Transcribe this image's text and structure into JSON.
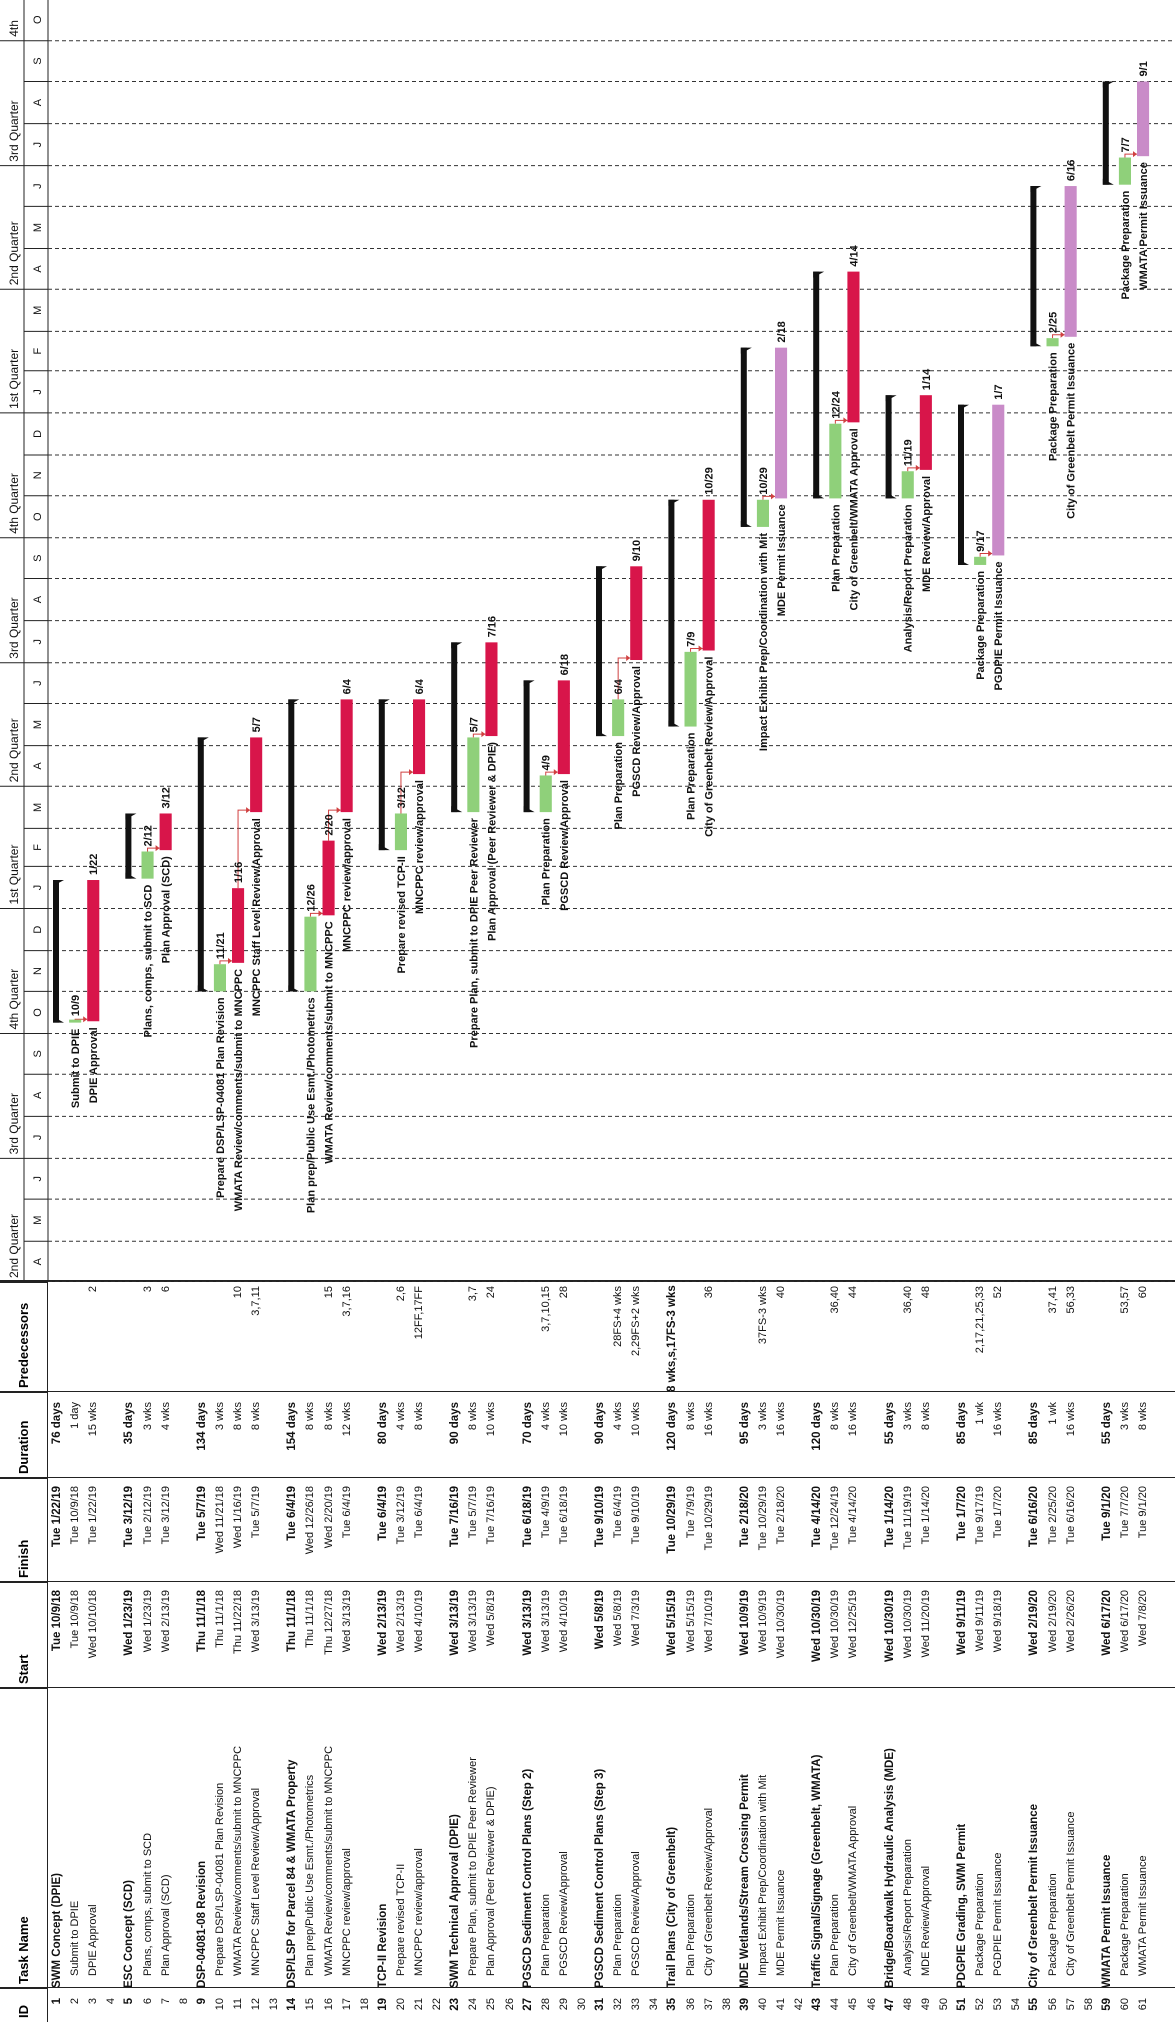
{
  "headers": {
    "id": "ID",
    "task": "Task Name",
    "start": "Start",
    "finish": "Finish",
    "duration": "Duration",
    "pred": "Predecessors"
  },
  "timescale": {
    "quarters": [
      "2nd Quarter",
      "3rd Quarter",
      "4th Quarter",
      "1st Quarter",
      "2nd Quarter",
      "3rd Quarter",
      "4th Quarter",
      "1st Quarter",
      "2nd Quarter",
      "3rd Quarter",
      "4th"
    ],
    "months": [
      "A",
      "M",
      "J",
      "J",
      "A",
      "S",
      "O",
      "N",
      "D",
      "J",
      "F",
      "M",
      "A",
      "M",
      "J",
      "J",
      "A",
      "S",
      "O",
      "N",
      "D",
      "J",
      "F",
      "M",
      "A",
      "M",
      "J",
      "J",
      "A",
      "S",
      "O"
    ]
  },
  "colors": {
    "summary": "#111111",
    "normal": "#8fd07a",
    "critical": "#d8154a",
    "permit": "#c98bc8",
    "link": "#d04040"
  },
  "chart_data": {
    "type": "gantt",
    "x_axis_start": "2018-04-01",
    "x_axis_end": "2020-10-31",
    "tasks": [
      {
        "id": "1",
        "name": "SWM Concept (DPIE)",
        "start": "Tue 10/9/18",
        "finish": "Tue 1/22/19",
        "duration": "76 days",
        "pred": "",
        "kind": "summary",
        "s": "2018-10-09",
        "f": "2019-01-22",
        "label": ""
      },
      {
        "id": "2",
        "name": "Submit to DPIE",
        "start": "Tue 10/9/18",
        "finish": "Tue 10/9/18",
        "duration": "1 day",
        "pred": "",
        "kind": "normal",
        "s": "2018-10-09",
        "f": "2018-10-10",
        "label": "Submit to DPIE",
        "endlabel": "10/9"
      },
      {
        "id": "3",
        "name": "DPIE Approval",
        "start": "Wed 10/10/18",
        "finish": "Tue 1/22/19",
        "duration": "15 wks",
        "pred": "2",
        "kind": "critical",
        "s": "2018-10-10",
        "f": "2019-01-22",
        "label": "DPIE Approval",
        "endlabel": "1/22"
      },
      {
        "id": "4",
        "name": "",
        "start": "",
        "finish": "",
        "duration": "",
        "pred": "",
        "kind": "blank"
      },
      {
        "id": "5",
        "name": "ESC Concept (SCD)",
        "start": "Wed 1/23/19",
        "finish": "Tue 3/12/19",
        "duration": "35 days",
        "pred": "",
        "kind": "summary",
        "s": "2019-01-23",
        "f": "2019-03-12",
        "label": ""
      },
      {
        "id": "6",
        "name": "Plans, comps, submit to SCD",
        "start": "Wed 1/23/19",
        "finish": "Tue 2/12/19",
        "duration": "3 wks",
        "pred": "3",
        "kind": "normal",
        "s": "2019-01-23",
        "f": "2019-02-12",
        "label": "Plans, comps, submit to SCD",
        "endlabel": "2/12"
      },
      {
        "id": "7",
        "name": "Plan Approval (SCD)",
        "start": "Wed 2/13/19",
        "finish": "Tue 3/12/19",
        "duration": "4 wks",
        "pred": "6",
        "kind": "critical",
        "s": "2019-02-13",
        "f": "2019-03-12",
        "label": "Plan Approval (SCD)",
        "endlabel": "3/12"
      },
      {
        "id": "8",
        "name": "",
        "start": "",
        "finish": "",
        "duration": "",
        "pred": "",
        "kind": "blank"
      },
      {
        "id": "9",
        "name": "DSP-04081-08 Revision",
        "start": "Thu 11/1/18",
        "finish": "Tue 5/7/19",
        "duration": "134 days",
        "pred": "",
        "kind": "summary",
        "s": "2018-11-01",
        "f": "2019-05-07",
        "label": ""
      },
      {
        "id": "10",
        "name": "Prepare DSP/LSP-04081 Plan Revision",
        "start": "Thu 11/1/18",
        "finish": "Wed 11/21/18",
        "duration": "3 wks",
        "pred": "",
        "kind": "normal",
        "s": "2018-11-01",
        "f": "2018-11-21",
        "label": "Prepare DSP/LSP-04081 Plan Revision",
        "endlabel": "11/21"
      },
      {
        "id": "11",
        "name": "WMATA Review/comments/submit to MNCPPC",
        "start": "Thu 11/22/18",
        "finish": "Wed 1/16/19",
        "duration": "8 wks",
        "pred": "10",
        "kind": "critical",
        "s": "2018-11-22",
        "f": "2019-01-16",
        "label": "WMATA Review/comments/submit to MNCPPC",
        "endlabel": "1/16"
      },
      {
        "id": "12",
        "name": "MNCPPC Staff Level Review/Approval",
        "start": "Wed 3/13/19",
        "finish": "Tue 5/7/19",
        "duration": "8 wks",
        "pred": "3,7,11",
        "kind": "critical",
        "s": "2019-03-13",
        "f": "2019-05-07",
        "label": "MNCPPC Staff Level Review/Approval",
        "endlabel": "5/7"
      },
      {
        "id": "13",
        "name": "",
        "start": "",
        "finish": "",
        "duration": "",
        "pred": "",
        "kind": "blank"
      },
      {
        "id": "14",
        "name": "DSP/LSP for Parcel 84 & WMATA Property",
        "start": "Thu 11/1/18",
        "finish": "Tue 6/4/19",
        "duration": "154 days",
        "pred": "",
        "kind": "summary",
        "s": "2018-11-01",
        "f": "2019-06-04",
        "label": ""
      },
      {
        "id": "15",
        "name": "Plan prep/Public Use Esmt./Photometrics",
        "start": "Thu 11/1/18",
        "finish": "Wed 12/26/18",
        "duration": "8 wks",
        "pred": "",
        "kind": "normal",
        "s": "2018-11-01",
        "f": "2018-12-26",
        "label": "Plan prep/Public Use Esmt./Photometrics",
        "endlabel": "12/26"
      },
      {
        "id": "16",
        "name": "WMATA Review/comments/submit to MNCPPC",
        "start": "Thu 12/27/18",
        "finish": "Wed 2/20/19",
        "duration": "8 wks",
        "pred": "15",
        "kind": "critical",
        "s": "2018-12-27",
        "f": "2019-02-20",
        "label": "WMATA Review/comments/submit to MNCPPC",
        "endlabel": "2/20"
      },
      {
        "id": "17",
        "name": "MNCPPC review/approval",
        "start": "Wed 3/13/19",
        "finish": "Tue 6/4/19",
        "duration": "12 wks",
        "pred": "3,7,16",
        "kind": "critical",
        "s": "2019-03-13",
        "f": "2019-06-04",
        "label": "MNCPPC review/approval",
        "endlabel": "6/4"
      },
      {
        "id": "18",
        "name": "",
        "start": "",
        "finish": "",
        "duration": "",
        "pred": "",
        "kind": "blank"
      },
      {
        "id": "19",
        "name": "TCP-II Revision",
        "start": "Wed 2/13/19",
        "finish": "Tue 6/4/19",
        "duration": "80 days",
        "pred": "",
        "kind": "summary",
        "s": "2019-02-13",
        "f": "2019-06-04",
        "label": ""
      },
      {
        "id": "20",
        "name": "Prepare revised TCP-II",
        "start": "Wed 2/13/19",
        "finish": "Tue 3/12/19",
        "duration": "4 wks",
        "pred": "2,6",
        "kind": "normal",
        "s": "2019-02-13",
        "f": "2019-03-12",
        "label": "Prepare revised TCP-II",
        "endlabel": "3/12"
      },
      {
        "id": "21",
        "name": "MNCPPC review/approval",
        "start": "Wed 4/10/19",
        "finish": "Tue 6/4/19",
        "duration": "8 wks",
        "pred": "12FF,17FF",
        "kind": "critical",
        "s": "2019-04-10",
        "f": "2019-06-04",
        "label": "MNCPPC review/approval",
        "endlabel": "6/4"
      },
      {
        "id": "22",
        "name": "",
        "start": "",
        "finish": "",
        "duration": "",
        "pred": "",
        "kind": "blank"
      },
      {
        "id": "23",
        "name": "SWM Technical Approval (DPIE)",
        "start": "Wed 3/13/19",
        "finish": "Tue 7/16/19",
        "duration": "90 days",
        "pred": "",
        "kind": "summary",
        "s": "2019-03-13",
        "f": "2019-07-16",
        "label": ""
      },
      {
        "id": "24",
        "name": "Prepare Plan, submit to DPIE Peer Reviewer",
        "start": "Wed 3/13/19",
        "finish": "Tue 5/7/19",
        "duration": "8 wks",
        "pred": "3,7",
        "kind": "normal",
        "s": "2019-03-13",
        "f": "2019-05-07",
        "label": "Prepare Plan, submit to DPIE Peer Reviewer",
        "endlabel": "5/7"
      },
      {
        "id": "25",
        "name": "Plan Approval (Peer Reviewer & DPIE)",
        "start": "Wed 5/8/19",
        "finish": "Tue 7/16/19",
        "duration": "10 wks",
        "pred": "24",
        "kind": "critical",
        "s": "2019-05-08",
        "f": "2019-07-16",
        "label": "Plan Approval (Peer Reviewer & DPIE)",
        "endlabel": "7/16"
      },
      {
        "id": "26",
        "name": "",
        "start": "",
        "finish": "",
        "duration": "",
        "pred": "",
        "kind": "blank"
      },
      {
        "id": "27",
        "name": "PGSCD Sediment Control Plans (Step 2)",
        "start": "Wed 3/13/19",
        "finish": "Tue 6/18/19",
        "duration": "70 days",
        "pred": "",
        "kind": "summary",
        "s": "2019-03-13",
        "f": "2019-06-18",
        "label": ""
      },
      {
        "id": "28",
        "name": "Plan Preparation",
        "start": "Wed 3/13/19",
        "finish": "Tue 4/9/19",
        "duration": "4 wks",
        "pred": "3,7,10,15",
        "kind": "normal",
        "s": "2019-03-13",
        "f": "2019-04-09",
        "label": "Plan Preparation",
        "endlabel": "4/9"
      },
      {
        "id": "29",
        "name": "PGSCD Review/Approval",
        "start": "Wed 4/10/19",
        "finish": "Tue 6/18/19",
        "duration": "10 wks",
        "pred": "28",
        "kind": "critical",
        "s": "2019-04-10",
        "f": "2019-06-18",
        "label": "PGSCD Review/Approval",
        "endlabel": "6/18"
      },
      {
        "id": "30",
        "name": "",
        "start": "",
        "finish": "",
        "duration": "",
        "pred": "",
        "kind": "blank"
      },
      {
        "id": "31",
        "name": "PGSCD Sediment Control Plans (Step 3)",
        "start": "Wed 5/8/19",
        "finish": "Tue 9/10/19",
        "duration": "90 days",
        "pred": "",
        "kind": "summary",
        "s": "2019-05-08",
        "f": "2019-09-10",
        "label": ""
      },
      {
        "id": "32",
        "name": "Plan Preparation",
        "start": "Wed 5/8/19",
        "finish": "Tue 6/4/19",
        "duration": "4 wks",
        "pred": "28FS+4 wks",
        "kind": "normal",
        "s": "2019-05-08",
        "f": "2019-06-04",
        "label": "Plan Preparation",
        "endlabel": "6/4"
      },
      {
        "id": "33",
        "name": "PGSCD Review/Approval",
        "start": "Wed 7/3/19",
        "finish": "Tue 9/10/19",
        "duration": "10 wks",
        "pred": "2,29FS+2 wks",
        "kind": "critical",
        "s": "2019-07-03",
        "f": "2019-09-10",
        "label": "PGSCD Review/Approval",
        "endlabel": "9/10"
      },
      {
        "id": "34",
        "name": "",
        "start": "",
        "finish": "",
        "duration": "",
        "pred": "",
        "kind": "blank"
      },
      {
        "id": "35",
        "name": "Trail Plans (City of Greenbelt)",
        "start": "Wed 5/15/19",
        "finish": "Tue 10/29/19",
        "duration": "120 days",
        "pred": "8 wks,s,17FS-3 wks",
        "kind": "summary",
        "s": "2019-05-15",
        "f": "2019-10-29",
        "label": ""
      },
      {
        "id": "36",
        "name": "Plan Preparation",
        "start": "Wed 5/15/19",
        "finish": "Tue 7/9/19",
        "duration": "8 wks",
        "pred": "",
        "kind": "normal",
        "s": "2019-05-15",
        "f": "2019-07-09",
        "label": "Plan Preparation",
        "endlabel": "7/9"
      },
      {
        "id": "37",
        "name": "City of Greenbelt Review/Approval",
        "start": "Wed 7/10/19",
        "finish": "Tue 10/29/19",
        "duration": "16 wks",
        "pred": "36",
        "kind": "critical",
        "s": "2019-07-10",
        "f": "2019-10-29",
        "label": "City of Greenbelt Review/Approval",
        "endlabel": "10/29"
      },
      {
        "id": "38",
        "name": "",
        "start": "",
        "finish": "",
        "duration": "",
        "pred": "",
        "kind": "blank"
      },
      {
        "id": "39",
        "name": "MDE Wetlands/Stream Crossing Permit",
        "start": "Wed 10/9/19",
        "finish": "Tue 2/18/20",
        "duration": "95 days",
        "pred": "",
        "kind": "summary",
        "s": "2019-10-09",
        "f": "2020-02-18",
        "label": ""
      },
      {
        "id": "40",
        "name": "Impact Exhibit Prep/Coordination with Mit",
        "start": "Wed 10/9/19",
        "finish": "Tue 10/29/19",
        "duration": "3 wks",
        "pred": "37FS-3 wks",
        "kind": "normal",
        "s": "2019-10-09",
        "f": "2019-10-29",
        "label": "Impact Exhibit Prep/Coordination with Mit",
        "endlabel": "10/29"
      },
      {
        "id": "41",
        "name": "MDE Permit Issuance",
        "start": "Wed 10/30/19",
        "finish": "Tue 2/18/20",
        "duration": "16 wks",
        "pred": "40",
        "kind": "permit",
        "s": "2019-10-30",
        "f": "2020-02-18",
        "label": "MDE Permit Issuance",
        "endlabel": "2/18"
      },
      {
        "id": "42",
        "name": "",
        "start": "",
        "finish": "",
        "duration": "",
        "pred": "",
        "kind": "blank"
      },
      {
        "id": "43",
        "name": "Traffic Signal/Signage (Greenbelt, WMATA)",
        "start": "Wed 10/30/19",
        "finish": "Tue 4/14/20",
        "duration": "120 days",
        "pred": "",
        "kind": "summary",
        "s": "2019-10-30",
        "f": "2020-04-14",
        "label": ""
      },
      {
        "id": "44",
        "name": "Plan Preparation",
        "start": "Wed 10/30/19",
        "finish": "Tue 12/24/19",
        "duration": "8 wks",
        "pred": "36,40",
        "kind": "normal",
        "s": "2019-10-30",
        "f": "2019-12-24",
        "label": "Plan Preparation",
        "endlabel": "12/24"
      },
      {
        "id": "45",
        "name": "City of Greenbelt/WMATA Approval",
        "start": "Wed 12/25/19",
        "finish": "Tue 4/14/20",
        "duration": "16 wks",
        "pred": "44",
        "kind": "critical",
        "s": "2019-12-25",
        "f": "2020-04-14",
        "label": "City of Greenbelt/WMATA Approval",
        "endlabel": "4/14"
      },
      {
        "id": "46",
        "name": "",
        "start": "",
        "finish": "",
        "duration": "",
        "pred": "",
        "kind": "blank"
      },
      {
        "id": "47",
        "name": "Bridge/Boardwalk Hydraulic Analysis (MDE)",
        "start": "Wed 10/30/19",
        "finish": "Tue 1/14/20",
        "duration": "55 days",
        "pred": "",
        "kind": "summary",
        "s": "2019-10-30",
        "f": "2020-01-14",
        "label": ""
      },
      {
        "id": "48",
        "name": "Analysis/Report Preparation",
        "start": "Wed 10/30/19",
        "finish": "Tue 11/19/19",
        "duration": "3 wks",
        "pred": "36,40",
        "kind": "normal",
        "s": "2019-10-30",
        "f": "2019-11-19",
        "label": "Analysis/Report Preparation",
        "endlabel": "11/19"
      },
      {
        "id": "49",
        "name": "MDE Review/Approval",
        "start": "Wed 11/20/19",
        "finish": "Tue 1/14/20",
        "duration": "8 wks",
        "pred": "48",
        "kind": "critical",
        "s": "2019-11-20",
        "f": "2020-01-14",
        "label": "MDE Review/Approval",
        "endlabel": "1/14"
      },
      {
        "id": "50",
        "name": "",
        "start": "",
        "finish": "",
        "duration": "",
        "pred": "",
        "kind": "blank"
      },
      {
        "id": "51",
        "name": "PDGPIE Grading, SWM Permit",
        "start": "Wed 9/11/19",
        "finish": "Tue 1/7/20",
        "duration": "85 days",
        "pred": "",
        "kind": "summary",
        "s": "2019-09-11",
        "f": "2020-01-07",
        "label": ""
      },
      {
        "id": "52",
        "name": "Package Preparation",
        "start": "Wed 9/11/19",
        "finish": "Tue 9/17/19",
        "duration": "1 wk",
        "pred": "2,17,21,25,33",
        "kind": "normal",
        "s": "2019-09-11",
        "f": "2019-09-17",
        "label": "Package Preparation",
        "endlabel": "9/17"
      },
      {
        "id": "53",
        "name": "PGDPIE Permit Issuance",
        "start": "Wed 9/18/19",
        "finish": "Tue 1/7/20",
        "duration": "16 wks",
        "pred": "52",
        "kind": "permit",
        "s": "2019-09-18",
        "f": "2020-01-07",
        "label": "PGDPIE Permit Issuance",
        "endlabel": "1/7"
      },
      {
        "id": "54",
        "name": "",
        "start": "",
        "finish": "",
        "duration": "",
        "pred": "",
        "kind": "blank"
      },
      {
        "id": "55",
        "name": "City of Greenbelt Permit Issuance",
        "start": "Wed 2/19/20",
        "finish": "Tue 6/16/20",
        "duration": "85 days",
        "pred": "",
        "kind": "summary",
        "s": "2020-02-19",
        "f": "2020-06-16",
        "label": ""
      },
      {
        "id": "56",
        "name": "Package Preparation",
        "start": "Wed 2/19/20",
        "finish": "Tue 2/25/20",
        "duration": "1 wk",
        "pred": "37,41",
        "kind": "normal",
        "s": "2020-02-19",
        "f": "2020-02-25",
        "label": "Package Preparation",
        "endlabel": "2/25"
      },
      {
        "id": "57",
        "name": "City of Greenbelt Permit Issuance",
        "start": "Wed 2/26/20",
        "finish": "Tue 6/16/20",
        "duration": "16 wks",
        "pred": "56,33",
        "kind": "permit",
        "s": "2020-02-26",
        "f": "2020-06-16",
        "label": "City of Greenbelt Permit Issuance",
        "endlabel": "6/16"
      },
      {
        "id": "58",
        "name": "",
        "start": "",
        "finish": "",
        "duration": "",
        "pred": "",
        "kind": "blank"
      },
      {
        "id": "59",
        "name": "WMATA Permit Issuance",
        "start": "Wed 6/17/20",
        "finish": "Tue 9/1/20",
        "duration": "55 days",
        "pred": "",
        "kind": "summary",
        "s": "2020-06-17",
        "f": "2020-09-01",
        "label": ""
      },
      {
        "id": "60",
        "name": "Package Preparation",
        "start": "Wed 6/17/20",
        "finish": "Tue 7/7/20",
        "duration": "3 wks",
        "pred": "53,57",
        "kind": "normal",
        "s": "2020-06-17",
        "f": "2020-07-07",
        "label": "Package Preparation",
        "endlabel": "7/7"
      },
      {
        "id": "61",
        "name": "WMATA Permit Issuance",
        "start": "Wed 7/8/20",
        "finish": "Tue 9/1/20",
        "duration": "8 wks",
        "pred": "60",
        "kind": "permit",
        "s": "2020-07-08",
        "f": "2020-09-01",
        "label": "WMATA Permit Issuance",
        "endlabel": "9/1"
      }
    ]
  }
}
